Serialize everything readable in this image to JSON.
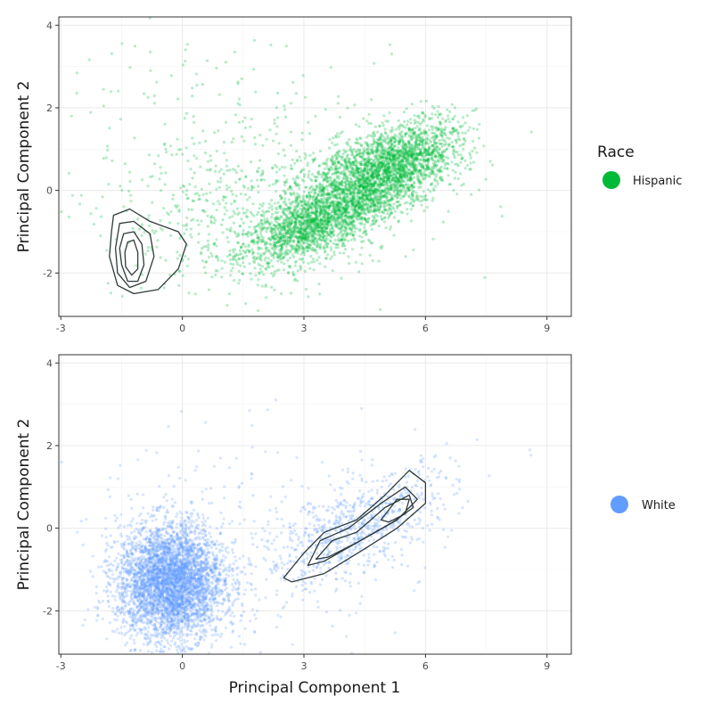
{
  "chart_data": [
    {
      "type": "scatter",
      "panel": "top",
      "title": "",
      "xlabel": "",
      "ylabel": "Principal Component 2",
      "xlim": [
        -3.05,
        9.6
      ],
      "ylim": [
        -3.05,
        4.2
      ],
      "x_ticks": [
        -3,
        0,
        3,
        6,
        9
      ],
      "y_ticks": [
        -2,
        0,
        2,
        4
      ],
      "x_tick_labels": [
        "-3",
        "0",
        "3",
        "6",
        "9"
      ],
      "y_tick_labels": [
        "-2",
        "0",
        "2",
        "4"
      ],
      "grid": true,
      "series": [
        {
          "name": "Hispanic",
          "color": "#00ba38",
          "clusters": [
            {
              "cx": 3.2,
              "cy": -0.9,
              "sx": 0.9,
              "sy": 0.35,
              "weight": 0.25
            },
            {
              "cx": 4.3,
              "cy": 0.1,
              "sx": 1.0,
              "sy": 0.55,
              "weight": 0.35
            },
            {
              "cx": 5.4,
              "cy": 0.7,
              "sx": 0.75,
              "sy": 0.45,
              "weight": 0.25
            },
            {
              "cx": 1.8,
              "cy": -0.7,
              "sx": 1.7,
              "sy": 0.9,
              "weight": 0.1
            },
            {
              "cx": 1.5,
              "cy": 1.0,
              "sx": 2.5,
              "sy": 1.5,
              "weight": 0.05
            }
          ]
        }
      ],
      "contours": [
        [
          [
            -1.7,
            -0.6
          ],
          [
            -1.3,
            -0.45
          ],
          [
            -0.8,
            -0.75
          ],
          [
            -0.1,
            -1.0
          ],
          [
            0.1,
            -1.3
          ],
          [
            -0.1,
            -1.9
          ],
          [
            -0.6,
            -2.4
          ],
          [
            -1.2,
            -2.5
          ],
          [
            -1.6,
            -2.3
          ],
          [
            -1.8,
            -1.6
          ],
          [
            -1.75,
            -1.0
          ]
        ],
        [
          [
            -1.55,
            -0.8
          ],
          [
            -1.2,
            -0.75
          ],
          [
            -0.8,
            -1.05
          ],
          [
            -0.7,
            -1.6
          ],
          [
            -0.9,
            -2.2
          ],
          [
            -1.3,
            -2.35
          ],
          [
            -1.6,
            -2.0
          ],
          [
            -1.65,
            -1.4
          ]
        ],
        [
          [
            -1.45,
            -1.05
          ],
          [
            -1.2,
            -1.0
          ],
          [
            -1.0,
            -1.3
          ],
          [
            -0.95,
            -1.8
          ],
          [
            -1.1,
            -2.2
          ],
          [
            -1.35,
            -2.2
          ],
          [
            -1.5,
            -1.8
          ],
          [
            -1.55,
            -1.4
          ]
        ],
        [
          [
            -1.35,
            -1.25
          ],
          [
            -1.2,
            -1.2
          ],
          [
            -1.1,
            -1.5
          ],
          [
            -1.1,
            -1.9
          ],
          [
            -1.25,
            -2.05
          ],
          [
            -1.4,
            -1.85
          ],
          [
            -1.42,
            -1.5
          ]
        ]
      ]
    },
    {
      "type": "scatter",
      "panel": "bottom",
      "title": "",
      "xlabel": "Principal Component 1",
      "ylabel": "Principal Component 2",
      "xlim": [
        -3.05,
        9.6
      ],
      "ylim": [
        -3.05,
        4.2
      ],
      "x_ticks": [
        -3,
        0,
        3,
        6,
        9
      ],
      "y_ticks": [
        -2,
        0,
        2,
        4
      ],
      "x_tick_labels": [
        "-3",
        "0",
        "3",
        "6",
        "9"
      ],
      "y_tick_labels": [
        "-2",
        "0",
        "2",
        "4"
      ],
      "grid": true,
      "series": [
        {
          "name": "White",
          "color": "#619cff",
          "clusters": [
            {
              "cx": -0.3,
              "cy": -1.3,
              "sx": 0.65,
              "sy": 0.7,
              "weight": 0.8
            },
            {
              "cx": 4.3,
              "cy": 0.0,
              "sx": 1.2,
              "sy": 0.55,
              "weight": 0.15
            },
            {
              "cx": 1.5,
              "cy": -0.5,
              "sx": 2.0,
              "sy": 1.4,
              "weight": 0.05
            }
          ]
        }
      ],
      "contours": [
        [
          [
            2.5,
            -1.2
          ],
          [
            3.0,
            -0.6
          ],
          [
            3.5,
            -0.1
          ],
          [
            4.3,
            0.2
          ],
          [
            5.0,
            0.8
          ],
          [
            5.6,
            1.4
          ],
          [
            6.0,
            1.1
          ],
          [
            6.0,
            0.6
          ],
          [
            5.3,
            0.0
          ],
          [
            4.5,
            -0.5
          ],
          [
            3.5,
            -1.1
          ],
          [
            2.7,
            -1.3
          ]
        ],
        [
          [
            3.1,
            -0.9
          ],
          [
            3.4,
            -0.3
          ],
          [
            4.1,
            0.0
          ],
          [
            4.9,
            0.6
          ],
          [
            5.5,
            1.0
          ],
          [
            5.8,
            0.7
          ],
          [
            5.3,
            0.2
          ],
          [
            4.4,
            -0.3
          ],
          [
            3.5,
            -0.8
          ]
        ],
        [
          [
            3.3,
            -0.75
          ],
          [
            3.7,
            -0.3
          ],
          [
            4.3,
            -0.1
          ],
          [
            5.0,
            0.5
          ],
          [
            5.6,
            0.8
          ],
          [
            5.7,
            0.5
          ],
          [
            5.2,
            0.15
          ],
          [
            4.3,
            -0.35
          ],
          [
            3.6,
            -0.7
          ]
        ],
        [
          [
            4.9,
            0.2
          ],
          [
            5.3,
            0.7
          ],
          [
            5.6,
            0.7
          ],
          [
            5.5,
            0.35
          ],
          [
            5.1,
            0.15
          ]
        ]
      ]
    }
  ],
  "legend": {
    "title": "Race",
    "items": [
      {
        "label": "Hispanic",
        "color": "#00ba38"
      },
      {
        "label": "White",
        "color": "#619cff"
      }
    ]
  }
}
